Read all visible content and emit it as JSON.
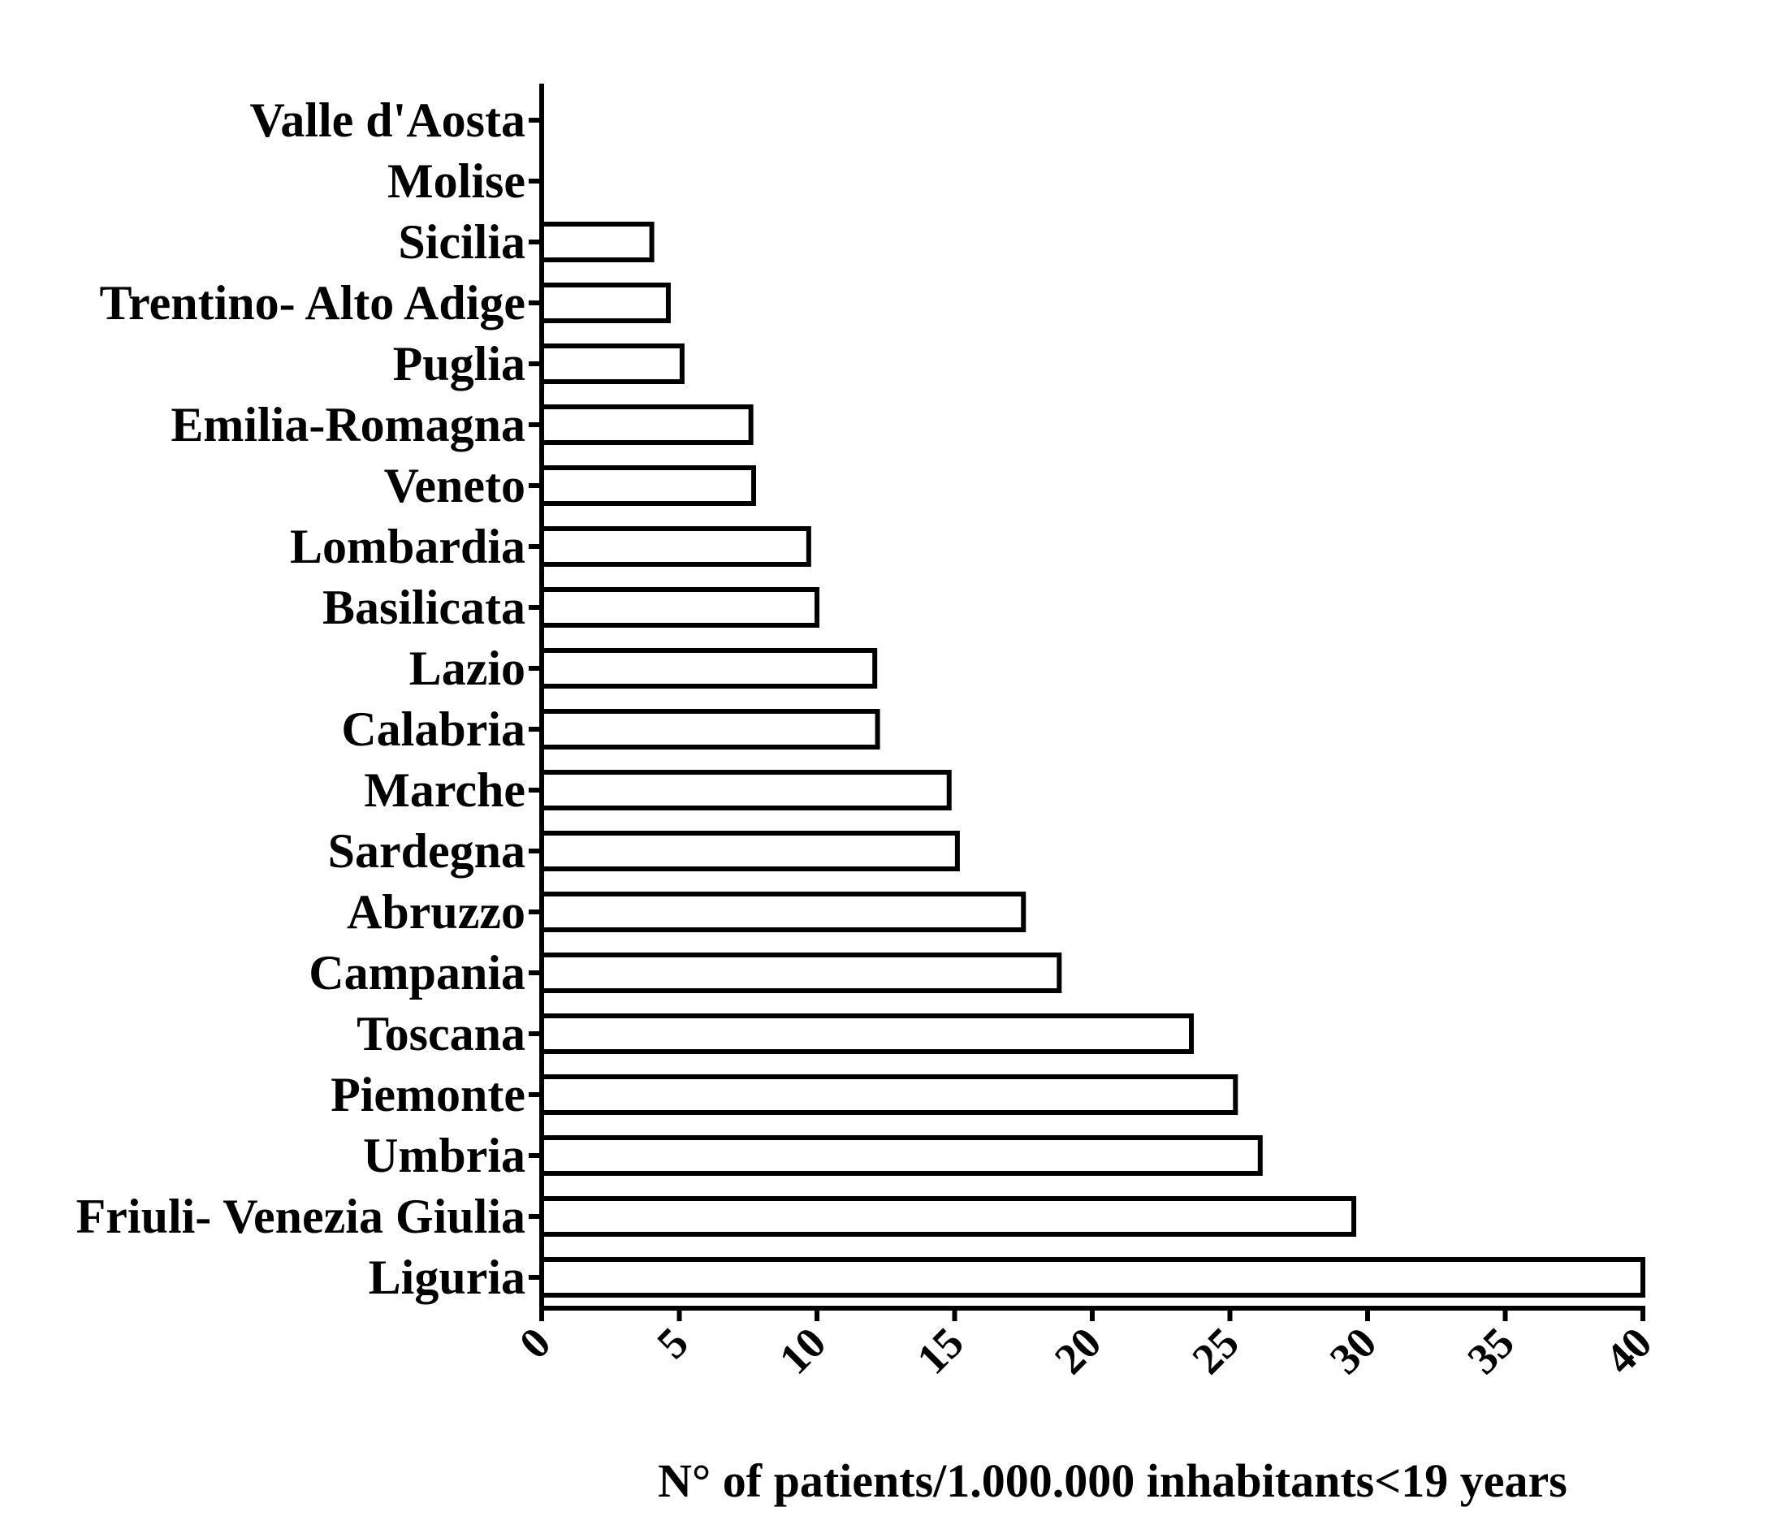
{
  "chart_data": {
    "type": "bar",
    "orientation": "horizontal",
    "title": "",
    "xlabel": "N° of patients/1.000.000 inhabitants<19 years",
    "ylabel": "",
    "xlim": [
      0,
      40
    ],
    "x_ticks": [
      0,
      5,
      10,
      15,
      20,
      25,
      30,
      35,
      40
    ],
    "x_tick_labels": [
      "0",
      "5",
      "10",
      "15",
      "20",
      "25",
      "30",
      "35",
      "40"
    ],
    "tick_label_rotation": -45,
    "grid": false,
    "legend": null,
    "bar_style": {
      "fill": "#ffffff",
      "stroke": "#000000"
    },
    "categories": [
      "Valle d'Aosta",
      "Molise",
      "Sicilia",
      "Trentino- Alto Adige",
      "Puglia",
      "Emilia-Romagna",
      "Veneto",
      "Lombardia",
      "Basilicata",
      "Lazio",
      "Calabria",
      "Marche",
      "Sardegna",
      "Abruzzo",
      "Campania",
      "Toscana",
      "Piemonte",
      "Umbria",
      "Friuli- Venezia Giulia",
      "Liguria"
    ],
    "values": [
      0,
      0,
      4.0,
      4.6,
      5.1,
      7.6,
      7.7,
      9.7,
      10.0,
      12.1,
      12.2,
      14.8,
      15.1,
      17.5,
      18.8,
      23.6,
      25.2,
      26.1,
      29.5,
      40.0
    ]
  },
  "colors": {
    "axis": "#000000",
    "bar_fill": "#ffffff",
    "bar_stroke": "#000000",
    "background": "#ffffff"
  }
}
